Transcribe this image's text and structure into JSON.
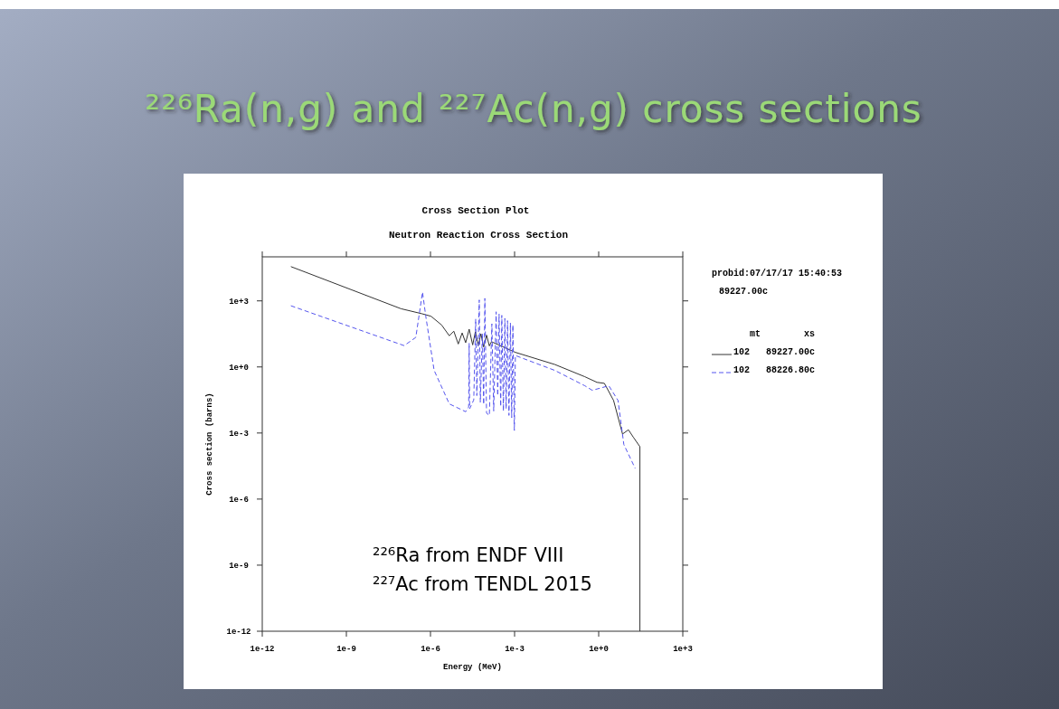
{
  "chart_data": {
    "type": "line",
    "title": "²²⁶Ra(n,g) and ²²⁷Ac(n,g) cross sections",
    "subtitle": "Cross Section Plot",
    "xlabel": "Energy (MeV)",
    "ylabel": "Cross section (barns)",
    "log": "xy",
    "xlim": [
      1e-12,
      1000
    ],
    "ylim": [
      1e-12,
      100000
    ],
    "xticks": [
      {
        "value": 1e-12,
        "label": "1e-12"
      },
      {
        "value": 1e-09,
        "label": "1e-9"
      },
      {
        "value": 1e-06,
        "label": "1e-6"
      },
      {
        "value": 0.001,
        "label": "1e-3"
      },
      {
        "value": 1,
        "label": "1e+0"
      },
      {
        "value": 1000,
        "label": "1e+3"
      }
    ],
    "yticks": [
      {
        "value": 1e-12,
        "label": "1e-12"
      },
      {
        "value": 1e-09,
        "label": "1e-9"
      },
      {
        "value": 1e-06,
        "label": "1e-6"
      },
      {
        "value": 0.001,
        "label": "1e-3"
      },
      {
        "value": 1,
        "label": "1e+0"
      },
      {
        "value": 1000,
        "label": "1e+3"
      }
    ],
    "grid": false,
    "legend": "right",
    "legend_title": "mt        xs",
    "marker": "none",
    "annotations": [
      "Neutron Reaction Cross Section",
      "probid:07/17/17 15:40:53",
      "89227.00c",
      "²²⁶Ra from ENDF VIII",
      "²²⁷Ac from TENDL 2015"
    ],
    "series": [
      {
        "name": "102   89227.00c",
        "color": "#333333",
        "line_style": "solid",
        "x": [
          1.05e-11,
          8.9e-08,
          5e-07,
          1.05e-06,
          2.5e-06,
          4.7e-06,
          6.8e-06,
          9.8e-06,
          1.35e-05,
          1.8e-05,
          2.4e-05,
          3.2e-05,
          4e-05,
          5e-05,
          6.3e-05,
          7.9e-05,
          0.0001,
          0.000126,
          0.00015,
          0.00107,
          0.027,
          0.32,
          0.87,
          1.6,
          3.4,
          7.1,
          11.5,
          17,
          29.5,
          29.5
        ],
        "values": [
          36000,
          440,
          260,
          200,
          80,
          26,
          42,
          11,
          35,
          12.6,
          52,
          10,
          40,
          9,
          32,
          8,
          28,
          9,
          14,
          4.6,
          1.3,
          0.36,
          0.2,
          0.18,
          0.03,
          0.0009,
          0.0014,
          0.00066,
          0.00024,
          1e-12
        ]
      },
      {
        "name": "102   88226.80c",
        "color": "#5555ee",
        "line_style": "dashed",
        "x": [
          1.05e-11,
          1.15e-07,
          3e-07,
          5.2e-07,
          6.8e-07,
          1.35e-06,
          4.7e-06,
          1.8e-05,
          2.3e-05,
          2.4e-05,
          2.5e-05,
          3.5e-05,
          4.1e-05,
          4.5e-05,
          5.5e-05,
          6e-05,
          7.1e-05,
          7.9e-05,
          8.7e-05,
          0.0001,
          0.000126,
          0.000155,
          0.00018,
          0.00022,
          0.00025,
          0.00028,
          0.00032,
          0.00035,
          0.0004,
          0.00045,
          0.0005,
          0.00056,
          0.00063,
          0.00071,
          0.00079,
          0.00087,
          0.00098,
          0.00107,
          0.027,
          0.32,
          0.59,
          2.3,
          4.9,
          7.9,
          20
        ],
        "values": [
          600,
          9.3,
          22,
          2500,
          200,
          0.7,
          0.021,
          0.0093,
          0.015,
          12,
          0.0126,
          0.032,
          150,
          0.05,
          1100,
          0.025,
          32,
          0.02,
          1300,
          0.008,
          0.0063,
          91,
          0.01,
          320,
          0.05,
          250,
          0.016,
          220,
          0.01,
          160,
          0.0126,
          126,
          0.0063,
          100,
          0.005,
          80,
          0.0013,
          3.3,
          0.7,
          0.14,
          0.087,
          0.14,
          0.03,
          0.0003,
          2.5e-05
        ]
      }
    ]
  }
}
